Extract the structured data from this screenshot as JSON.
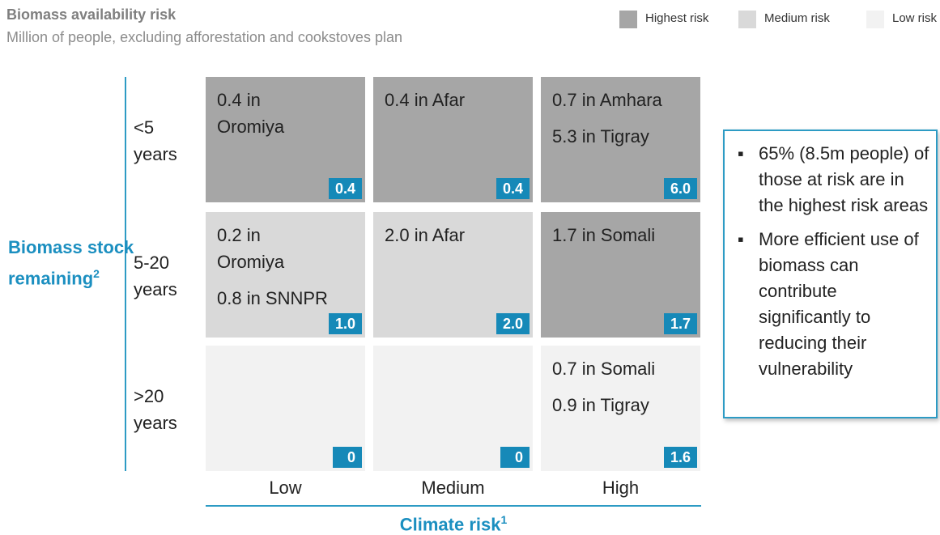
{
  "header": {
    "title": "Biomass availability risk",
    "subtitle": "Million of people, excluding afforestation and cookstoves plan"
  },
  "legend": [
    {
      "name": "Highest risk",
      "color": "#a6a6a6"
    },
    {
      "name": "Medium risk",
      "color": "#d9d9d9"
    },
    {
      "name": "Low risk",
      "color": "#f2f2f2"
    }
  ],
  "y_axis": {
    "label": "Biomass stock\nremaining",
    "note": "2"
  },
  "x_axis": {
    "label": "Climate risk",
    "note": "1"
  },
  "rows": [
    "<5\nyears",
    "5-20\nyears",
    ">20\nyears"
  ],
  "columns": [
    "Low",
    "Medium",
    "High"
  ],
  "cells": [
    [
      {
        "risk": 0,
        "entries": [
          "0.4 in\nOromiya"
        ],
        "total": "0.4"
      },
      {
        "risk": 0,
        "entries": [
          "0.4 in Afar"
        ],
        "total": "0.4"
      },
      {
        "risk": 0,
        "entries": [
          "0.7 in Amhara",
          "5.3 in Tigray"
        ],
        "total": "6.0"
      }
    ],
    [
      {
        "risk": 1,
        "entries": [
          "0.2 in\nOromiya",
          "0.8 in SNNPR"
        ],
        "total": "1.0"
      },
      {
        "risk": 1,
        "entries": [
          "2.0 in Afar"
        ],
        "total": "2.0"
      },
      {
        "risk": 0,
        "entries": [
          "1.7 in Somali"
        ],
        "total": "1.7"
      }
    ],
    [
      {
        "risk": 2,
        "entries": [],
        "total": "0"
      },
      {
        "risk": 2,
        "entries": [],
        "total": "0"
      },
      {
        "risk": 2,
        "entries": [
          "0.7 in Somali",
          "0.9 in Tigray"
        ],
        "total": "1.6"
      }
    ]
  ],
  "callout": {
    "bullets": [
      "65% (8.5m people) of those at risk are in the highest risk areas",
      "More efficient use of biomass can contribute significantly to reducing their vulnerability"
    ]
  }
}
